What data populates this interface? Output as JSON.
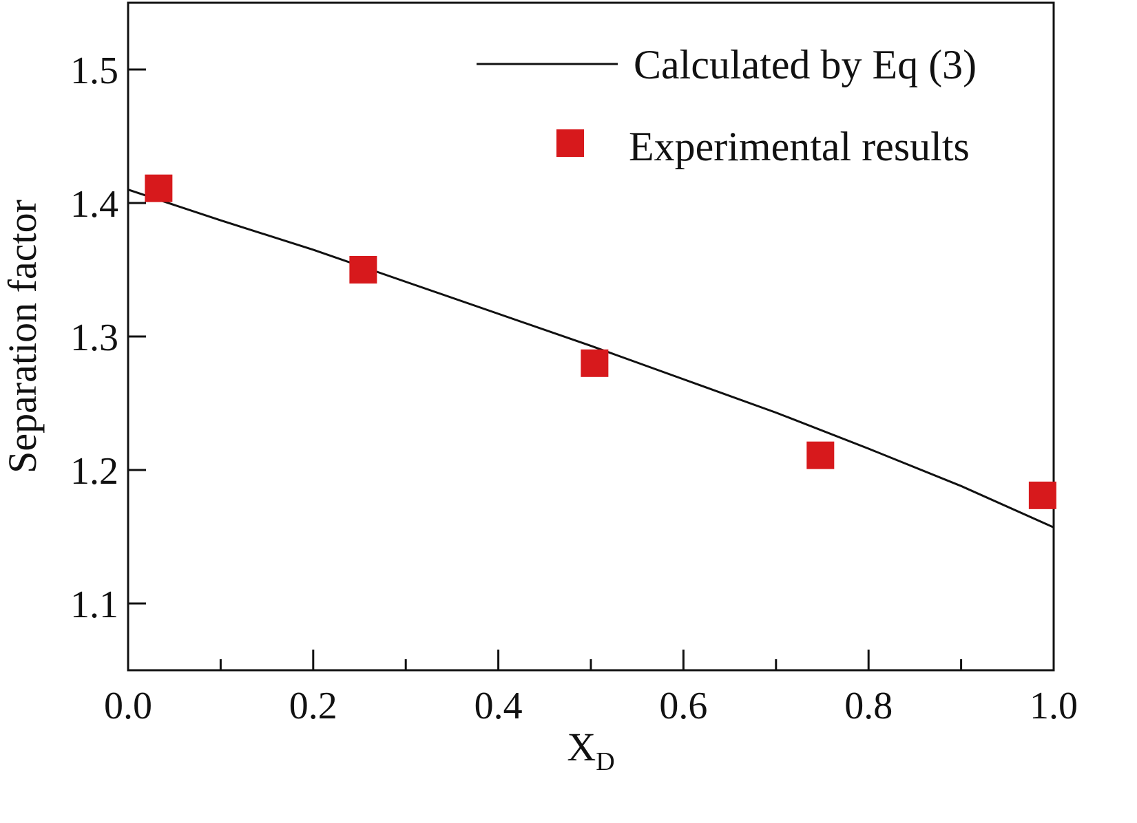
{
  "chart_data": {
    "type": "scatter",
    "xlabel": "X",
    "xlabel_subscript": "D",
    "ylabel": "Separation factor",
    "xlim": [
      0.0,
      1.0
    ],
    "ylim": [
      1.05,
      1.55
    ],
    "x_ticks": [
      0.0,
      0.2,
      0.4,
      0.6,
      0.8,
      1.0
    ],
    "x_tick_labels": [
      "0.0",
      "0.2",
      "0.4",
      "0.6",
      "0.8",
      "1.0"
    ],
    "x_minor_ticks": [
      0.1,
      0.3,
      0.5,
      0.7,
      0.9
    ],
    "y_ticks": [
      1.1,
      1.2,
      1.3,
      1.4,
      1.5
    ],
    "y_tick_labels": [
      "1.1",
      "1.2",
      "1.3",
      "1.4",
      "1.5"
    ],
    "grid": false,
    "legend_position": "top-right",
    "series": [
      {
        "name": "Calculated by Eq (3)",
        "kind": "line",
        "color": "#111111",
        "x": [
          0.0,
          0.1,
          0.2,
          0.3,
          0.4,
          0.5,
          0.6,
          0.7,
          0.8,
          0.9,
          1.0
        ],
        "y": [
          1.41,
          1.387,
          1.365,
          1.341,
          1.317,
          1.293,
          1.268,
          1.243,
          1.216,
          1.188,
          1.157
        ]
      },
      {
        "name": "Experimental results",
        "kind": "scatter",
        "marker": "square",
        "color": "#d7191c",
        "x": [
          0.033,
          0.254,
          0.504,
          0.748,
          0.988
        ],
        "y": [
          1.411,
          1.35,
          1.28,
          1.211,
          1.181
        ]
      }
    ]
  }
}
